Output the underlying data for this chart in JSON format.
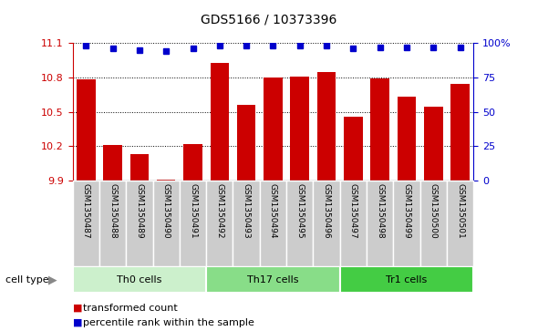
{
  "title": "GDS5166 / 10373396",
  "samples": [
    "GSM1350487",
    "GSM1350488",
    "GSM1350489",
    "GSM1350490",
    "GSM1350491",
    "GSM1350492",
    "GSM1350493",
    "GSM1350494",
    "GSM1350495",
    "GSM1350496",
    "GSM1350497",
    "GSM1350498",
    "GSM1350499",
    "GSM1350500",
    "GSM1350501"
  ],
  "transformed_counts": [
    10.78,
    10.21,
    10.13,
    9.91,
    10.22,
    10.93,
    10.56,
    10.8,
    10.81,
    10.85,
    10.46,
    10.79,
    10.63,
    10.54,
    10.74
  ],
  "percentile_ranks": [
    98,
    96,
    95,
    94,
    96,
    98,
    98,
    98,
    98,
    98,
    96,
    97,
    97,
    97,
    97
  ],
  "cell_types": [
    {
      "label": "Th0 cells",
      "start": 0,
      "end": 5,
      "color": "#ccf0cc"
    },
    {
      "label": "Th17 cells",
      "start": 5,
      "end": 10,
      "color": "#88dd88"
    },
    {
      "label": "Tr1 cells",
      "start": 10,
      "end": 15,
      "color": "#44cc44"
    }
  ],
  "ylim_left": [
    9.9,
    11.1
  ],
  "ylim_right": [
    0,
    100
  ],
  "yticks_left": [
    9.9,
    10.2,
    10.5,
    10.8,
    11.1
  ],
  "yticks_right": [
    0,
    25,
    50,
    75,
    100
  ],
  "bar_color": "#cc0000",
  "dot_color": "#0000cc",
  "label_bg_color": "#cccccc",
  "legend_bar_label": "transformed count",
  "legend_dot_label": "percentile rank within the sample",
  "cell_type_label": "cell type"
}
